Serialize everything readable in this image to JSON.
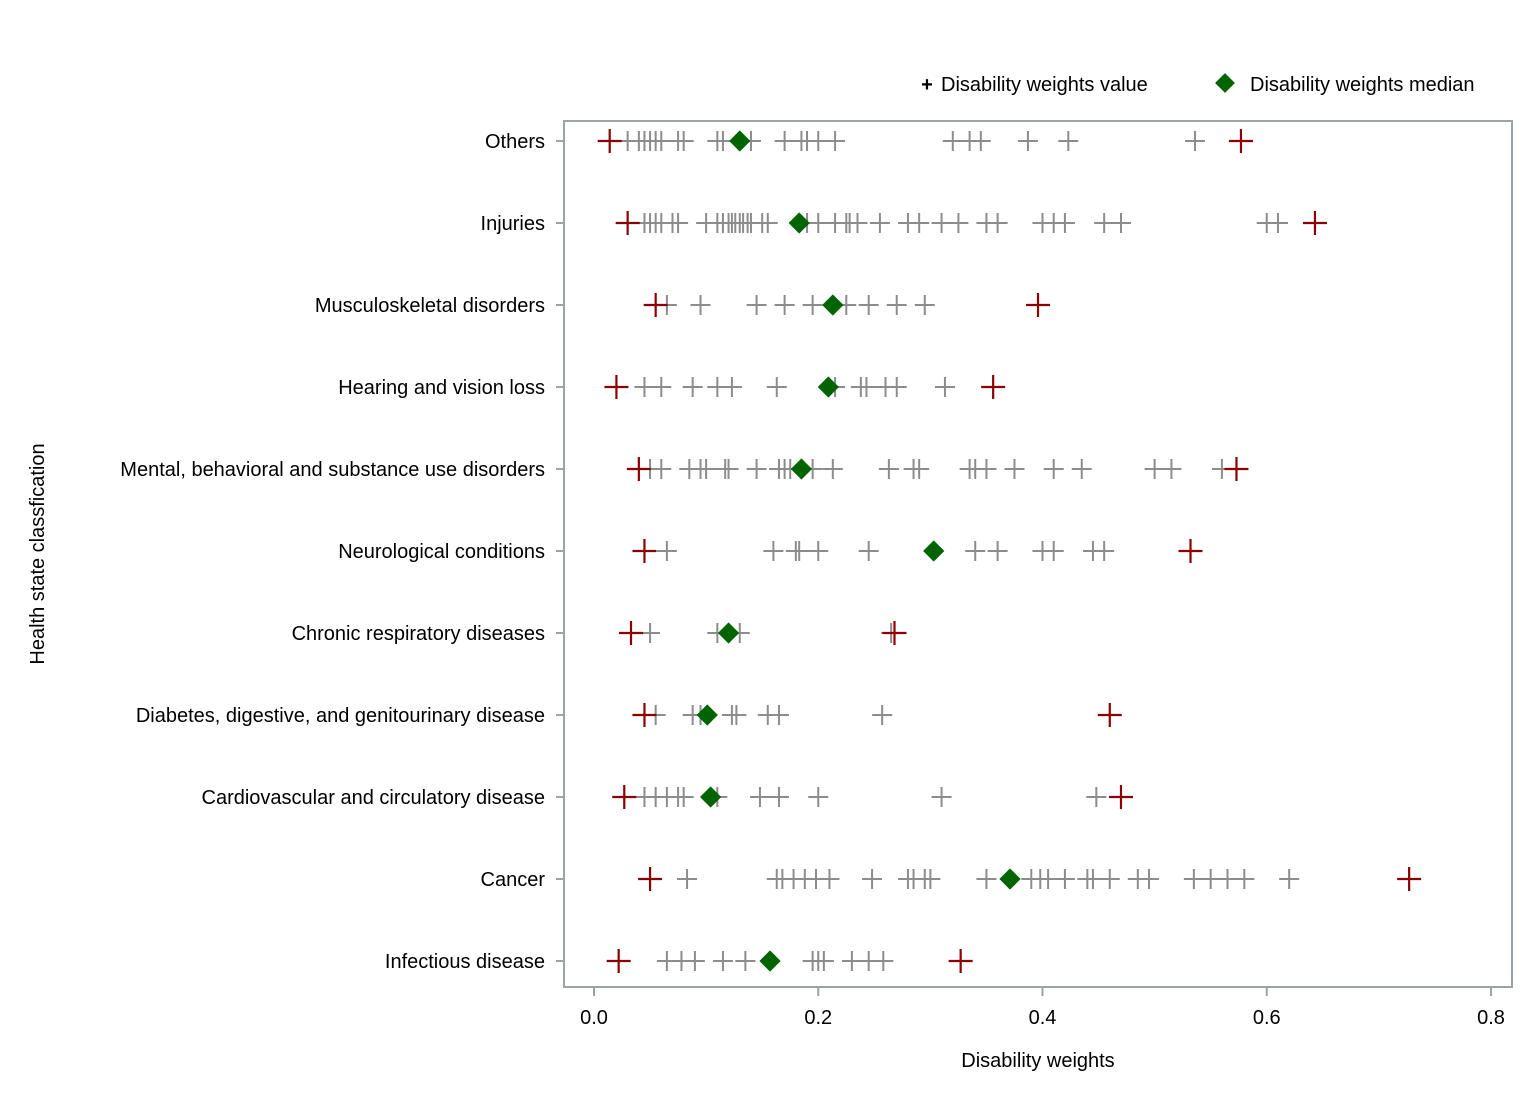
{
  "chart_data": {
    "type": "scatter",
    "xlabel": "Disability weights",
    "ylabel": "Health state classfication",
    "xlim": [
      0.0,
      0.8
    ],
    "xticks": [
      "0.0",
      "0.2",
      "0.4",
      "0.6",
      "0.8"
    ],
    "grid": false,
    "legend": {
      "placement": "top-right",
      "entries": [
        {
          "symbol": "+",
          "label": "Disability weights value"
        },
        {
          "symbol": "diamond",
          "label": "Disability weights median"
        }
      ]
    },
    "colors": {
      "value": "#8c8c8c",
      "extreme": "#8b0000",
      "median": "#006400",
      "frame": "#9aa3a8"
    },
    "categories": [
      {
        "name": "Others",
        "values": [
          0.03,
          0.04,
          0.045,
          0.05,
          0.055,
          0.06,
          0.075,
          0.08,
          0.11,
          0.115,
          0.14,
          0.17,
          0.185,
          0.19,
          0.2,
          0.215,
          0.32,
          0.335,
          0.345,
          0.387,
          0.423,
          0.536
        ],
        "min": 0.014,
        "max": 0.577,
        "median": 0.13
      },
      {
        "name": "Injuries",
        "values": [
          0.045,
          0.05,
          0.055,
          0.06,
          0.07,
          0.075,
          0.1,
          0.11,
          0.115,
          0.12,
          0.123,
          0.126,
          0.13,
          0.133,
          0.137,
          0.14,
          0.15,
          0.155,
          0.19,
          0.2,
          0.215,
          0.225,
          0.228,
          0.235,
          0.255,
          0.28,
          0.29,
          0.31,
          0.325,
          0.35,
          0.36,
          0.4,
          0.41,
          0.42,
          0.455,
          0.47,
          0.6,
          0.61
        ],
        "min": 0.03,
        "max": 0.643,
        "median": 0.183
      },
      {
        "name": "Musculoskeletal disorders",
        "values": [
          0.065,
          0.095,
          0.145,
          0.17,
          0.195,
          0.225,
          0.245,
          0.27,
          0.295
        ],
        "min": 0.055,
        "max": 0.396,
        "median": 0.213
      },
      {
        "name": "Hearing and vision loss",
        "values": [
          0.045,
          0.06,
          0.088,
          0.11,
          0.123,
          0.163,
          0.215,
          0.238,
          0.243,
          0.26,
          0.27,
          0.313
        ],
        "min": 0.02,
        "max": 0.356,
        "median": 0.209
      },
      {
        "name": "Mental, behavioral and substance use disorders",
        "values": [
          0.05,
          0.06,
          0.085,
          0.095,
          0.1,
          0.117,
          0.12,
          0.145,
          0.165,
          0.17,
          0.175,
          0.195,
          0.213,
          0.263,
          0.285,
          0.29,
          0.335,
          0.34,
          0.35,
          0.375,
          0.41,
          0.435,
          0.5,
          0.515,
          0.56
        ],
        "min": 0.04,
        "max": 0.573,
        "median": 0.185
      },
      {
        "name": "Neurological conditions",
        "values": [
          0.065,
          0.16,
          0.18,
          0.183,
          0.2,
          0.245,
          0.34,
          0.36,
          0.4,
          0.41,
          0.445,
          0.455
        ],
        "min": 0.045,
        "max": 0.532,
        "median": 0.303
      },
      {
        "name": "Chronic respiratory diseases",
        "values": [
          0.05,
          0.11,
          0.13,
          0.265
        ],
        "min": 0.033,
        "max": 0.268,
        "median": 0.12
      },
      {
        "name": "Diabetes, digestive, and genitourinary disease",
        "values": [
          0.055,
          0.088,
          0.095,
          0.123,
          0.127,
          0.155,
          0.165,
          0.257
        ],
        "min": 0.045,
        "max": 0.46,
        "median": 0.101
      },
      {
        "name": "Cardiovascular and circulatory disease",
        "values": [
          0.045,
          0.055,
          0.065,
          0.075,
          0.08,
          0.11,
          0.148,
          0.165,
          0.2,
          0.31,
          0.448
        ],
        "min": 0.027,
        "max": 0.47,
        "median": 0.104
      },
      {
        "name": "Cancer",
        "values": [
          0.083,
          0.163,
          0.168,
          0.178,
          0.188,
          0.198,
          0.21,
          0.248,
          0.28,
          0.285,
          0.295,
          0.3,
          0.35,
          0.39,
          0.398,
          0.405,
          0.42,
          0.44,
          0.445,
          0.46,
          0.485,
          0.495,
          0.535,
          0.55,
          0.565,
          0.58,
          0.62
        ],
        "min": 0.05,
        "max": 0.727,
        "median": 0.371
      },
      {
        "name": "Infectious disease",
        "values": [
          0.065,
          0.078,
          0.09,
          0.115,
          0.135,
          0.195,
          0.2,
          0.205,
          0.23,
          0.245,
          0.258
        ],
        "min": 0.022,
        "max": 0.327,
        "median": 0.157
      }
    ]
  }
}
